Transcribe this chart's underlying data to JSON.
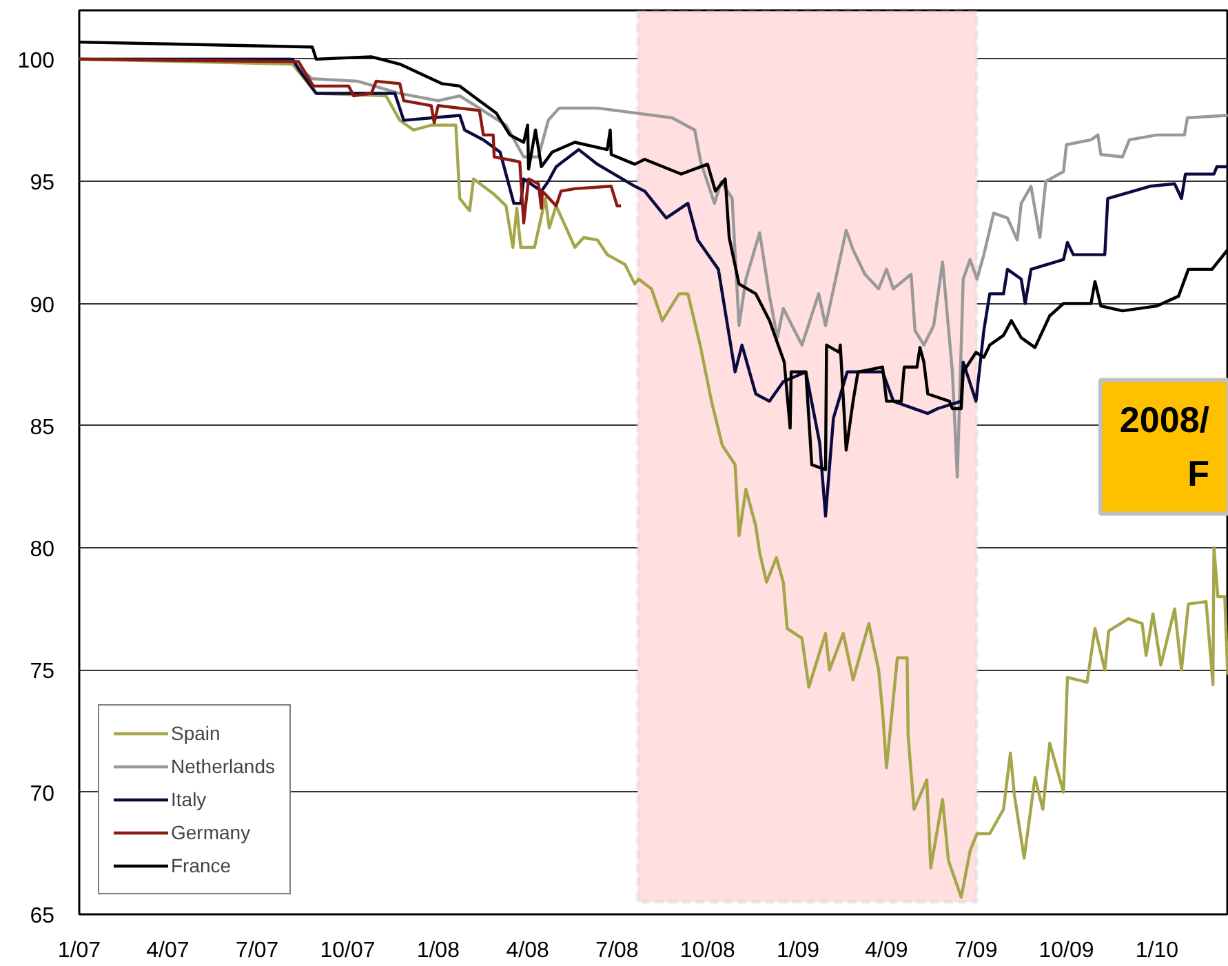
{
  "chart_data": {
    "type": "line",
    "xlim": [
      "2007-01-01",
      "2010-03-15"
    ],
    "ylim": [
      65,
      102
    ],
    "xticks": [
      {
        "value": "2007-01-01",
        "label": "1/07"
      },
      {
        "value": "2007-04-01",
        "label": "4/07"
      },
      {
        "value": "2007-07-01",
        "label": "7/07"
      },
      {
        "value": "2007-10-01",
        "label": "10/07"
      },
      {
        "value": "2008-01-01",
        "label": "1/08"
      },
      {
        "value": "2008-04-01",
        "label": "4/08"
      },
      {
        "value": "2008-07-01",
        "label": "7/08"
      },
      {
        "value": "2008-10-01",
        "label": "10/08"
      },
      {
        "value": "2009-01-01",
        "label": "1/09"
      },
      {
        "value": "2009-04-01",
        "label": "4/09"
      },
      {
        "value": "2009-07-01",
        "label": "7/09"
      },
      {
        "value": "2009-10-01",
        "label": "10/09"
      },
      {
        "value": "2010-01-01",
        "label": "1/10"
      }
    ],
    "yticks": [
      65,
      70,
      75,
      80,
      85,
      90,
      95,
      100
    ],
    "grid": "y",
    "legend": "bottom left",
    "bands": [
      {
        "axis": "x",
        "from": "2008-07-22",
        "to": "2009-07-02",
        "color": "#ffdfe0"
      }
    ],
    "annotations": [
      "2008/\nF"
    ],
    "series": [
      {
        "name": "Spain",
        "color": "#a5a54a",
        "x": [
          "2007-01-01",
          "2007-08-06",
          "2007-08-30",
          "2007-11-09",
          "2007-11-23",
          "2007-12-07",
          "2007-12-25",
          "2008-01-19",
          "2008-01-23",
          "2008-02-02",
          "2008-02-06",
          "2008-02-26",
          "2008-03-10",
          "2008-03-17",
          "2008-03-21",
          "2008-03-25",
          "2008-04-08",
          "2008-04-19",
          "2008-04-23",
          "2008-04-30",
          "2008-05-19",
          "2008-05-28",
          "2008-06-11",
          "2008-06-21",
          "2008-07-09",
          "2008-07-19",
          "2008-07-23",
          "2008-08-05",
          "2008-08-16",
          "2008-09-02",
          "2008-09-11",
          "2008-09-24",
          "2008-10-05",
          "2008-10-16",
          "2008-10-29",
          "2008-11-02",
          "2008-11-09",
          "2008-11-19",
          "2008-11-23",
          "2008-11-30",
          "2008-12-10",
          "2008-12-17",
          "2008-12-21",
          "2009-01-05",
          "2009-01-12",
          "2009-01-29",
          "2009-02-02",
          "2009-02-16",
          "2009-02-26",
          "2009-03-14",
          "2009-03-24",
          "2009-03-28",
          "2009-04-01",
          "2009-04-12",
          "2009-04-22",
          "2009-04-23",
          "2009-04-29",
          "2009-05-12",
          "2009-05-16",
          "2009-05-28",
          "2009-06-03",
          "2009-06-16",
          "2009-06-25",
          "2009-07-02",
          "2009-07-15",
          "2009-07-29",
          "2009-08-05",
          "2009-08-09",
          "2009-08-19",
          "2009-08-30",
          "2009-09-07",
          "2009-09-14",
          "2009-09-28",
          "2009-10-02",
          "2009-10-22",
          "2009-10-30",
          "2009-11-09",
          "2009-11-13",
          "2009-12-03",
          "2009-12-17",
          "2009-12-21",
          "2009-12-28",
          "2010-01-05",
          "2010-01-19",
          "2010-01-26",
          "2010-02-02",
          "2010-02-20",
          "2010-02-27",
          "2010-02-28",
          "2010-03-04",
          "2010-03-11",
          "2010-03-14"
        ],
        "values": [
          100.0,
          99.8,
          98.6,
          98.5,
          97.5,
          97.1,
          97.3,
          97.3,
          94.3,
          93.8,
          95.1,
          94.5,
          94.0,
          92.3,
          93.9,
          92.3,
          92.3,
          94.3,
          93.1,
          94.0,
          92.3,
          92.7,
          92.6,
          92.0,
          91.6,
          90.8,
          91.0,
          90.6,
          89.3,
          90.4,
          90.4,
          88.2,
          86.0,
          84.2,
          83.4,
          80.5,
          82.4,
          80.9,
          79.8,
          78.6,
          79.6,
          78.6,
          76.7,
          76.3,
          74.3,
          76.5,
          75.0,
          76.5,
          74.6,
          76.9,
          75.0,
          73.3,
          71.0,
          75.5,
          75.5,
          72.3,
          69.3,
          70.5,
          66.9,
          69.7,
          67.2,
          65.7,
          67.6,
          68.3,
          68.3,
          69.3,
          71.6,
          69.9,
          67.3,
          70.6,
          69.3,
          72.0,
          70.0,
          74.7,
          74.5,
          76.7,
          75.0,
          76.6,
          77.1,
          76.9,
          75.6,
          77.3,
          75.2,
          77.5,
          75.0,
          77.7,
          77.8,
          74.4,
          80.0,
          78.0,
          78.0,
          74.8
        ]
      },
      {
        "name": "Netherlands",
        "color": "#999999",
        "x": [
          "2007-01-01",
          "2007-08-02",
          "2007-08-26",
          "2007-10-11",
          "2007-11-23",
          "2008-01-01",
          "2008-01-23",
          "2008-03-10",
          "2008-03-28",
          "2008-04-12",
          "2008-04-22",
          "2008-05-03",
          "2008-06-11",
          "2008-07-19",
          "2008-08-26",
          "2008-09-18",
          "2008-09-24",
          "2008-10-08",
          "2008-10-15",
          "2008-10-26",
          "2008-11-02",
          "2008-11-09",
          "2008-11-23",
          "2008-12-03",
          "2008-12-11",
          "2008-12-17",
          "2009-01-05",
          "2009-01-22",
          "2009-01-29",
          "2009-02-19",
          "2009-02-26",
          "2009-03-10",
          "2009-03-24",
          "2009-04-01",
          "2009-04-08",
          "2009-04-26",
          "2009-04-30",
          "2009-05-09",
          "2009-05-19",
          "2009-05-28",
          "2009-06-07",
          "2009-06-12",
          "2009-06-18",
          "2009-06-25",
          "2009-07-02",
          "2009-07-09",
          "2009-07-19",
          "2009-08-02",
          "2009-08-12",
          "2009-08-16",
          "2009-08-26",
          "2009-09-04",
          "2009-09-10",
          "2009-09-28",
          "2009-10-01",
          "2009-10-26",
          "2009-11-02",
          "2009-11-05",
          "2009-11-27",
          "2009-12-04",
          "2010-01-01",
          "2010-01-29",
          "2010-02-01",
          "2010-03-14"
        ],
        "values": [
          100.0,
          100.0,
          99.2,
          99.1,
          98.6,
          98.3,
          98.5,
          97.3,
          96.0,
          96.0,
          97.5,
          98.0,
          98.0,
          97.8,
          97.6,
          97.1,
          95.8,
          94.1,
          95.0,
          94.3,
          89.1,
          91.0,
          92.9,
          90.3,
          88.6,
          89.8,
          88.3,
          90.4,
          89.1,
          93.0,
          92.2,
          91.2,
          90.6,
          91.4,
          90.6,
          91.2,
          88.9,
          88.3,
          89.1,
          91.7,
          87.2,
          82.9,
          91.0,
          91.8,
          91.0,
          92.0,
          93.7,
          93.5,
          92.6,
          94.1,
          94.8,
          92.7,
          95.0,
          95.4,
          96.5,
          96.7,
          96.9,
          96.1,
          96.0,
          96.7,
          96.9,
          96.9,
          97.6,
          97.7
        ]
      },
      {
        "name": "Italy",
        "color": "#0a0a40",
        "x": [
          "2007-01-01",
          "2007-08-06",
          "2007-08-12",
          "2007-08-30",
          "2007-11-18",
          "2007-11-27",
          "2008-01-23",
          "2008-01-28",
          "2008-02-16",
          "2008-03-04",
          "2008-03-18",
          "2008-03-25",
          "2008-03-28",
          "2008-04-15",
          "2008-04-22",
          "2008-04-30",
          "2008-05-23",
          "2008-06-11",
          "2008-07-19",
          "2008-07-29",
          "2008-08-20",
          "2008-09-11",
          "2008-09-21",
          "2008-10-12",
          "2008-10-29",
          "2008-11-05",
          "2008-11-19",
          "2008-12-03",
          "2008-12-17",
          "2009-01-09",
          "2009-01-23",
          "2009-01-29",
          "2009-02-06",
          "2009-02-20",
          "2009-03-28",
          "2009-04-08",
          "2009-05-13",
          "2009-05-23",
          "2009-06-16",
          "2009-06-18",
          "2009-07-01",
          "2009-07-09",
          "2009-07-15",
          "2009-07-29",
          "2009-08-02",
          "2009-08-16",
          "2009-08-20",
          "2009-08-26",
          "2009-09-28",
          "2009-10-02",
          "2009-10-08",
          "2009-11-09",
          "2009-11-12",
          "2009-12-25",
          "2010-01-19",
          "2010-01-26",
          "2010-01-30",
          "2010-02-28",
          "2010-03-03",
          "2010-03-14"
        ],
        "values": [
          100.0,
          100.0,
          99.6,
          98.6,
          98.6,
          97.5,
          97.7,
          97.1,
          96.7,
          96.2,
          94.1,
          94.1,
          95.1,
          94.6,
          95.0,
          95.6,
          96.3,
          95.7,
          94.8,
          94.6,
          93.5,
          94.1,
          92.6,
          91.4,
          87.2,
          88.3,
          86.3,
          86.0,
          86.8,
          87.2,
          84.3,
          81.3,
          85.3,
          87.2,
          87.2,
          86.0,
          85.5,
          85.7,
          86.0,
          87.6,
          86.0,
          88.9,
          90.4,
          90.4,
          91.4,
          91.0,
          90.0,
          91.4,
          91.8,
          92.5,
          92.0,
          92.0,
          94.3,
          94.8,
          94.9,
          94.3,
          95.3,
          95.3,
          95.6,
          95.6
        ]
      },
      {
        "name": "Germany",
        "color": "#8b1a10",
        "x": [
          "2007-01-01",
          "2007-08-12",
          "2007-08-27",
          "2007-10-02",
          "2007-10-07",
          "2007-10-25",
          "2007-10-30",
          "2007-11-23",
          "2007-11-27",
          "2007-12-25",
          "2007-12-28",
          "2008-01-01",
          "2008-02-12",
          "2008-02-16",
          "2008-02-26",
          "2008-02-27",
          "2008-03-24",
          "2008-03-28",
          "2008-04-02",
          "2008-04-12",
          "2008-04-15",
          "2008-04-16",
          "2008-04-30",
          "2008-05-05",
          "2008-05-19",
          "2008-06-25",
          "2008-07-01",
          "2008-07-05"
        ],
        "values": [
          100.0,
          99.9,
          98.9,
          98.9,
          98.5,
          98.6,
          99.1,
          99.0,
          98.3,
          98.1,
          97.4,
          98.1,
          97.9,
          96.9,
          96.9,
          96.0,
          95.8,
          93.3,
          95.1,
          94.9,
          93.9,
          94.6,
          94.0,
          94.6,
          94.7,
          94.8,
          94.0,
          94.0
        ]
      },
      {
        "name": "France",
        "color": "#000000",
        "x": [
          "2007-01-01",
          "2007-08-26",
          "2007-08-30",
          "2007-10-25",
          "2007-11-23",
          "2008-01-05",
          "2008-01-23",
          "2008-02-12",
          "2008-02-29",
          "2008-03-14",
          "2008-03-28",
          "2008-04-01",
          "2008-04-02",
          "2008-04-09",
          "2008-04-15",
          "2008-04-26",
          "2008-05-19",
          "2008-06-21",
          "2008-06-24",
          "2008-06-25",
          "2008-07-19",
          "2008-07-29",
          "2008-09-04",
          "2008-10-01",
          "2008-10-09",
          "2008-10-19",
          "2008-10-23",
          "2008-11-02",
          "2008-11-19",
          "2008-12-03",
          "2008-12-18",
          "2008-12-24",
          "2008-12-25",
          "2009-01-09",
          "2009-01-15",
          "2009-01-29",
          "2009-01-30",
          "2009-02-12",
          "2009-02-13",
          "2009-02-19",
          "2009-02-26",
          "2009-03-03",
          "2009-03-28",
          "2009-04-01",
          "2009-04-16",
          "2009-04-19",
          "2009-05-02",
          "2009-05-05",
          "2009-05-09",
          "2009-05-13",
          "2009-06-04",
          "2009-06-07",
          "2009-06-16",
          "2009-06-18",
          "2009-07-01",
          "2009-07-09",
          "2009-07-15",
          "2009-07-29",
          "2009-08-06",
          "2009-08-16",
          "2009-08-30",
          "2009-09-14",
          "2009-09-28",
          "2009-10-26",
          "2009-10-30",
          "2009-11-05",
          "2009-11-27",
          "2010-01-01",
          "2010-01-23",
          "2010-02-02",
          "2010-02-26",
          "2010-03-14"
        ],
        "values": [
          100.7,
          100.5,
          100.0,
          100.1,
          99.8,
          99.0,
          98.9,
          98.3,
          97.8,
          96.9,
          96.6,
          97.3,
          95.5,
          97.1,
          95.6,
          96.2,
          96.6,
          96.3,
          97.1,
          96.1,
          95.7,
          95.9,
          95.3,
          95.7,
          94.6,
          95.1,
          92.7,
          90.8,
          90.4,
          89.3,
          87.6,
          84.9,
          87.2,
          87.2,
          83.4,
          83.2,
          88.3,
          88.0,
          88.3,
          84.0,
          86.0,
          87.2,
          87.4,
          86.0,
          86.0,
          87.4,
          87.4,
          88.2,
          87.6,
          86.3,
          86.0,
          85.7,
          85.7,
          87.2,
          88.0,
          87.8,
          88.3,
          88.7,
          89.3,
          88.6,
          88.2,
          89.5,
          90.0,
          90.0,
          90.9,
          89.9,
          89.7,
          89.9,
          90.3,
          91.4,
          91.4,
          92.2
        ]
      }
    ]
  }
}
